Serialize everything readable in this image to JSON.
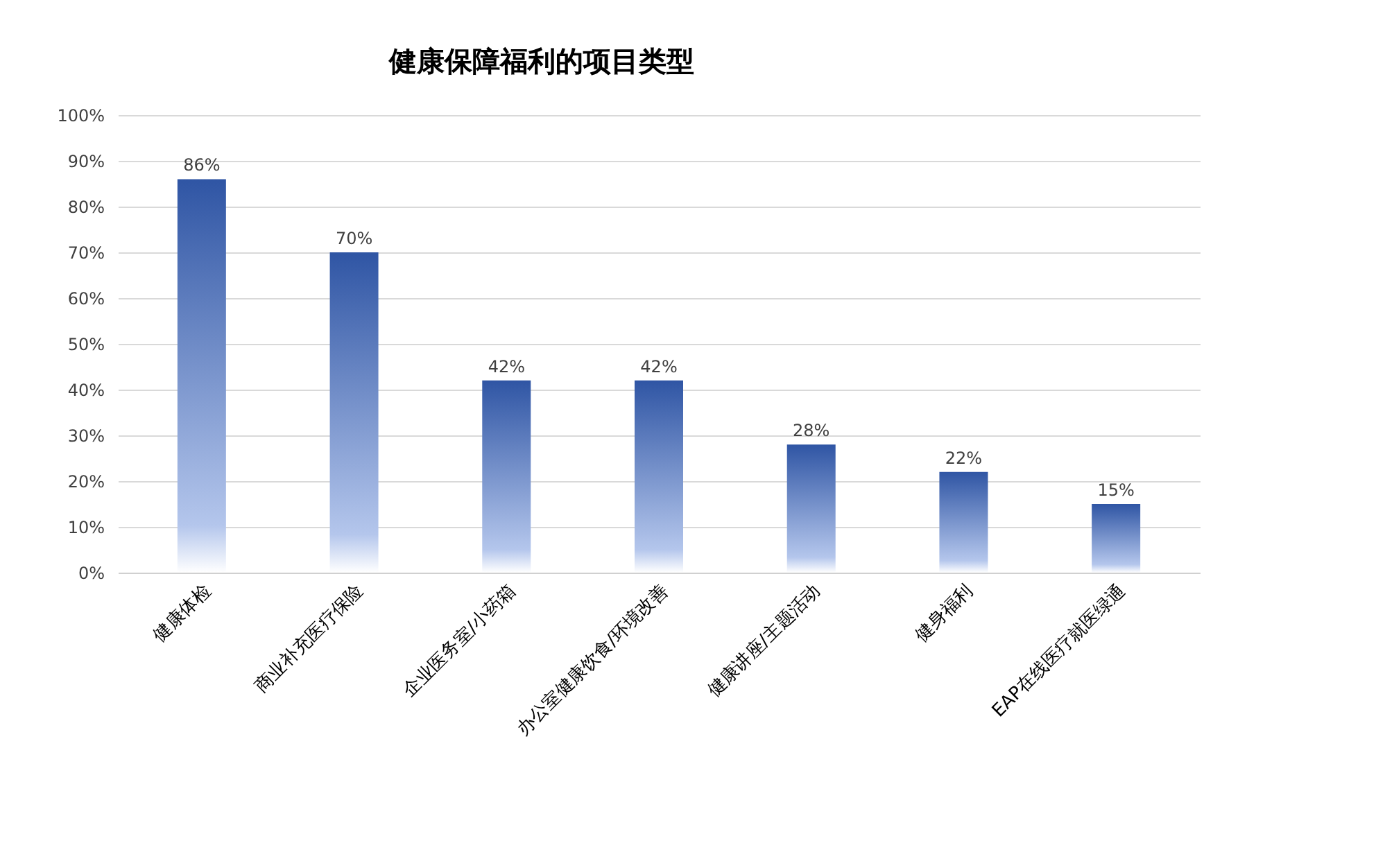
{
  "chart_data": {
    "type": "bar",
    "title": "健康保障福利的项目类型",
    "categories": [
      "健康体检",
      "商业补充医疗保险",
      "企业医务室/小药箱",
      "办公室健康饮食/环境改善",
      "健康讲座/主题活动",
      "健身福利",
      "EAP在线医疗就医绿通"
    ],
    "values": [
      86,
      70,
      42,
      42,
      28,
      22,
      15
    ],
    "value_labels": [
      "86%",
      "70%",
      "42%",
      "42%",
      "28%",
      "22%",
      "15%"
    ],
    "color": "#2f55a4",
    "ylim": [
      0,
      100
    ],
    "yticks": [
      {
        "value": 0,
        "label": "0%"
      },
      {
        "value": 10,
        "label": "10%"
      },
      {
        "value": 20,
        "label": "20%"
      },
      {
        "value": 30,
        "label": "30%"
      },
      {
        "value": 40,
        "label": "40%"
      },
      {
        "value": 50,
        "label": "50%"
      },
      {
        "value": 60,
        "label": "60%"
      },
      {
        "value": 70,
        "label": "70%"
      },
      {
        "value": 80,
        "label": "80%"
      },
      {
        "value": 90,
        "label": "90%"
      },
      {
        "value": 100,
        "label": "100%"
      }
    ],
    "grid": "y"
  }
}
